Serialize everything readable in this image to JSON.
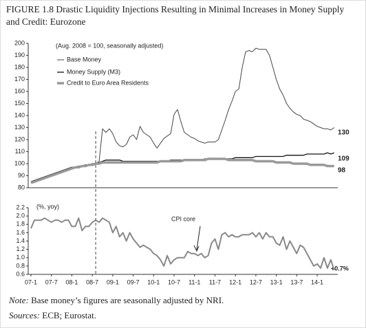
{
  "figure_title": "FIGURE 1.8 Drastic Liquidity Injections Resulting in Minimal Increases in Money Supply and Credit: Eurozone",
  "note_label": "Note:",
  "note_text": "Base money’s figures are seasonally adjusted by NRI.",
  "sources_label": "Sources:",
  "sources_text": "ECB; Eurostat.",
  "chart_data": [
    {
      "type": "line",
      "subtitle": "(Aug. 2008 = 100, seasonally adjusted)",
      "ylim": [
        80,
        200
      ],
      "yticks": [
        80,
        90,
        100,
        110,
        120,
        130,
        140,
        150,
        160,
        170,
        180,
        190,
        200
      ],
      "series": [
        {
          "name": "Base Money",
          "color": "#444444",
          "width": 1,
          "values": [
            85,
            86,
            87,
            88,
            89,
            90,
            91,
            92,
            93,
            94,
            95,
            96,
            97,
            97,
            98,
            98,
            99,
            99,
            100,
            100,
            102,
            129,
            126,
            129,
            125,
            118,
            115,
            114,
            116,
            122,
            124,
            120,
            131,
            126,
            124,
            122,
            117,
            113,
            117,
            121,
            123,
            125,
            141,
            145,
            135,
            126,
            124,
            122,
            121,
            119,
            118,
            117,
            118,
            118,
            118,
            120,
            128,
            136,
            145,
            152,
            160,
            162,
            180,
            193,
            194,
            193,
            196,
            195,
            195,
            195,
            190,
            180,
            170,
            162,
            157,
            150,
            146,
            143,
            141,
            140,
            137,
            136,
            135,
            133,
            131,
            130,
            129,
            129,
            128,
            130
          ]
        },
        {
          "name": "Money Supply (M3)",
          "color": "#111111",
          "width": 1.3,
          "values": [
            85,
            86,
            87,
            88,
            89,
            90,
            91,
            92,
            93,
            94,
            95,
            96,
            97,
            97,
            98,
            98,
            99,
            99,
            100,
            100,
            101,
            102,
            103,
            103,
            103,
            103,
            103,
            102,
            102,
            102,
            102,
            102,
            102,
            102,
            102,
            102,
            102,
            102,
            102,
            102,
            102,
            103,
            103,
            103,
            103,
            103,
            103,
            103,
            103,
            103,
            103,
            104,
            104,
            104,
            104,
            104,
            104,
            104,
            104,
            104,
            105,
            105,
            105,
            105,
            105,
            105,
            106,
            106,
            106,
            106,
            106,
            106,
            106,
            106,
            106,
            107,
            107,
            107,
            107,
            107,
            107,
            108,
            108,
            108,
            108,
            108,
            108,
            109,
            108,
            109
          ]
        },
        {
          "name": "Credit to Euro Area Residents",
          "color": "#999999",
          "width": 3.5,
          "values": [
            84,
            85,
            86,
            87,
            88,
            89,
            90,
            91,
            92,
            93,
            94,
            95,
            96,
            97,
            97,
            98,
            98,
            99,
            99,
            100,
            100,
            101,
            101,
            101,
            101,
            101,
            101,
            101,
            101,
            101,
            101,
            101,
            101,
            101,
            101,
            101,
            101,
            101,
            102,
            102,
            102,
            102,
            102,
            102,
            102,
            103,
            103,
            103,
            103,
            103,
            103,
            103,
            104,
            104,
            104,
            104,
            104,
            104,
            103,
            103,
            103,
            103,
            103,
            103,
            103,
            103,
            102,
            102,
            102,
            102,
            102,
            102,
            101,
            101,
            101,
            101,
            101,
            100,
            100,
            100,
            100,
            100,
            99,
            99,
            99,
            99,
            99,
            98,
            98,
            98
          ]
        }
      ]
    },
    {
      "type": "line",
      "subtitle": "(%, yoy)",
      "annotations": [
        "CPI core",
        "+0.7%"
      ],
      "ylim": [
        0.6,
        2.2
      ],
      "yticks": [
        0.6,
        0.8,
        {
          "value": 1,
          "label": "1.0"
        },
        1.2,
        1.4,
        1.6,
        1.8,
        {
          "value": 2,
          "label": "2.0"
        },
        2.2
      ],
      "categories": [
        "07-1",
        null,
        null,
        null,
        null,
        null,
        "07-7",
        null,
        null,
        null,
        null,
        null,
        "08-1",
        null,
        null,
        null,
        null,
        null,
        "08-7",
        null,
        null,
        null,
        null,
        null,
        "09-1",
        null,
        null,
        null,
        null,
        null,
        "09-7",
        null,
        null,
        null,
        null,
        null,
        "10-1",
        null,
        null,
        null,
        null,
        null,
        "10-7",
        null,
        null,
        null,
        null,
        null,
        "11-1",
        null,
        null,
        null,
        null,
        null,
        "11-7",
        null,
        null,
        null,
        null,
        null,
        "12-1",
        null,
        null,
        null,
        null,
        null,
        "12-7",
        null,
        null,
        null,
        null,
        null,
        "13-1",
        null,
        null,
        null,
        null,
        null,
        "13-7",
        null,
        null,
        null,
        null,
        null,
        "14-1",
        null,
        null,
        null,
        null,
        null
      ],
      "series": [
        {
          "name": "CPI core",
          "color": "#888888",
          "width": 2,
          "values": [
            1.7,
            1.9,
            1.9,
            1.9,
            1.95,
            1.9,
            1.85,
            1.9,
            1.9,
            1.85,
            1.9,
            1.9,
            1.75,
            1.75,
            1.95,
            1.65,
            1.75,
            1.75,
            1.85,
            1.9,
            1.85,
            1.95,
            1.9,
            1.85,
            1.6,
            1.75,
            1.5,
            1.6,
            1.4,
            1.6,
            1.45,
            1.35,
            1.25,
            1.3,
            1.25,
            1.2,
            1.1,
            1.05,
            0.95,
            0.8,
            1.05,
            0.85,
            0.95,
            1.0,
            1.0,
            1.0,
            1.15,
            1.1,
            1.1,
            1.05,
            1.1,
            1.0,
            1.05,
            1.35,
            1.45,
            1.2,
            1.55,
            1.6,
            1.5,
            1.55,
            1.5,
            1.5,
            1.55,
            1.55,
            1.55,
            1.6,
            1.5,
            1.6,
            1.45,
            1.6,
            1.5,
            1.5,
            1.35,
            1.3,
            1.5,
            1.2,
            1.4,
            1.25,
            1.1,
            1.3,
            1.25,
            1.1,
            0.95,
            0.8,
            0.85,
            0.75,
            1.0,
            0.75,
            0.95,
            0.7
          ]
        }
      ]
    }
  ]
}
